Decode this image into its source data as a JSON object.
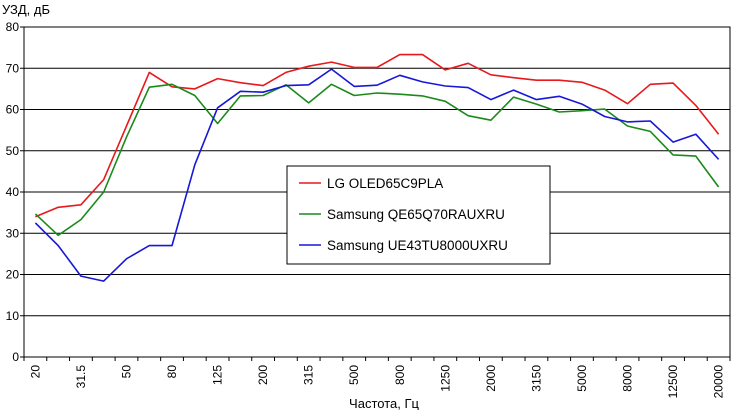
{
  "chart_data": {
    "type": "line",
    "ylabel": "УЗД, дБ",
    "xlabel": "Частота, Гц",
    "ylim": [
      0,
      80
    ],
    "yticks": [
      0,
      10,
      20,
      30,
      40,
      50,
      60,
      70,
      80
    ],
    "grid": "horizontal",
    "legend_position": "center",
    "x": [
      "20",
      "25",
      "31.5",
      "40",
      "50",
      "63",
      "80",
      "100",
      "125",
      "160",
      "200",
      "250",
      "315",
      "400",
      "500",
      "630",
      "800",
      "1000",
      "1250",
      "1600",
      "2000",
      "2500",
      "3150",
      "4000",
      "5000",
      "6300",
      "8000",
      "10000",
      "12500",
      "16000",
      "20000"
    ],
    "x_tick_labels": [
      "20",
      "31.5",
      "50",
      "80",
      "125",
      "200",
      "315",
      "500",
      "800",
      "1250",
      "2000",
      "3150",
      "5000",
      "8000",
      "12500",
      "20000"
    ],
    "series": [
      {
        "name": "LG OLED65C9PLA",
        "color": "#e8191d",
        "values": [
          34,
          36.3,
          36.9,
          43,
          56,
          69,
          65.5,
          65,
          67.5,
          66.5,
          65.8,
          69,
          70.5,
          71.5,
          70.2,
          70.2,
          73.3,
          73.3,
          69.6,
          71.2,
          68.4,
          67.7,
          67.1,
          67.1,
          66.6,
          64.7,
          61.4,
          66.1,
          66.4,
          61,
          54
        ]
      },
      {
        "name": "Samsung QE65Q70RAUXRU",
        "color": "#1b8a1b",
        "values": [
          34.7,
          29.5,
          33.3,
          40,
          53.3,
          65.4,
          66.1,
          63.4,
          56.6,
          63.3,
          63.4,
          66,
          61.6,
          66.1,
          63.4,
          64,
          63.7,
          63.3,
          62,
          58.5,
          57.4,
          63,
          61.3,
          59.4,
          59.7,
          60.1,
          56,
          54.7,
          49,
          48.7,
          41.2
        ]
      },
      {
        "name": "Samsung UE43TU8000UXRU",
        "color": "#1717d8",
        "values": [
          32.5,
          27,
          19.6,
          18.4,
          23.8,
          27,
          27,
          46.6,
          60.4,
          64.4,
          64.2,
          65.8,
          66,
          69.8,
          65.6,
          65.9,
          68.3,
          66.7,
          65.7,
          65.3,
          62.4,
          64.7,
          62.4,
          63.2,
          61.3,
          58.3,
          57,
          57.2,
          52.1,
          54,
          47.9
        ]
      }
    ]
  }
}
